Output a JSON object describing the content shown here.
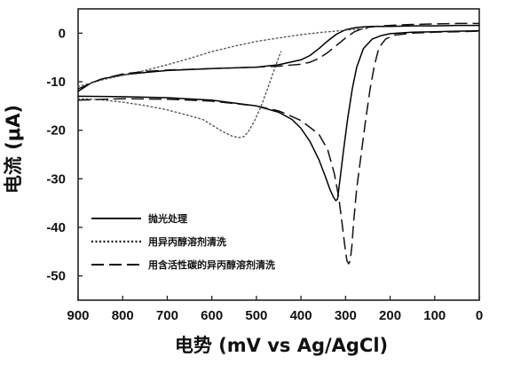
{
  "chart_data": {
    "type": "line",
    "xlabel": "电势  (mV vs Ag/AgCl)",
    "ylabel": "电流  (μA)",
    "xlim": [
      900,
      0
    ],
    "ylim": [
      -55,
      5
    ],
    "x_ticks": [
      900,
      800,
      700,
      600,
      500,
      400,
      300,
      200,
      100,
      0
    ],
    "y_ticks": [
      0,
      -10,
      -20,
      -30,
      -40,
      -50
    ],
    "legend_position": "lower-left",
    "grid": false,
    "series": [
      {
        "name": "抛光处理",
        "style": "solid",
        "color": "#000000",
        "segments": [
          {
            "x": [
              900,
              870,
              840,
              800,
              750,
              700,
              600,
              500,
              450,
              400,
              380,
              360,
              340,
              320,
              300,
              280,
              260,
              240,
              220,
              200,
              150,
              100,
              50,
              0
            ],
            "y": [
              -12,
              -10.2,
              -9.3,
              -8.6,
              -8.1,
              -7.7,
              -7.3,
              -7,
              -6.5,
              -5.5,
              -4.6,
              -3.2,
              -1.6,
              -0.2,
              0.7,
              1.1,
              1.3,
              1.4,
              1.4,
              1.4,
              1.5,
              1.5,
              1.6,
              1.6
            ]
          },
          {
            "x": [
              900,
              800,
              700,
              600,
              500,
              450,
              420,
              400,
              380,
              360,
              345,
              335,
              327,
              322,
              318,
              312,
              305,
              295,
              285,
              275,
              260,
              240,
              220,
              200,
              150,
              100,
              50,
              0
            ],
            "y": [
              -13,
              -13.1,
              -13.3,
              -13.8,
              -15,
              -16.3,
              -17.8,
              -19.6,
              -22.3,
              -26,
              -29.6,
              -32.2,
              -33.8,
              -34.5,
              -34.2,
              -29.8,
              -24.5,
              -17.5,
              -11.5,
              -7,
              -3.2,
              -1.2,
              -0.5,
              -0.1,
              0.2,
              0.3,
              0.4,
              0.5
            ]
          }
        ]
      },
      {
        "name": "用异丙醇溶剂清洗",
        "style": "dotted",
        "color": "#555555",
        "segments": [
          {
            "x": [
              900,
              850,
              800,
              750,
              700,
              650,
              600,
              550,
              500,
              450,
              400,
              350,
              300,
              280,
              260,
              250
            ],
            "y": [
              -11,
              -9.7,
              -8.7,
              -7.7,
              -6.5,
              -5.2,
              -3.8,
              -2.7,
              -1.7,
              -1,
              -0.3,
              0.2,
              0.6,
              0.8,
              0.9,
              1
            ]
          },
          {
            "x": [
              900,
              850,
              800,
              750,
              700,
              650,
              620,
              600,
              575,
              555,
              540,
              528,
              518,
              505,
              490,
              475,
              460,
              445
            ],
            "y": [
              -13.5,
              -13.7,
              -14.2,
              -14.9,
              -15.8,
              -17,
              -17.8,
              -18.9,
              -20.3,
              -21.2,
              -21.5,
              -21.3,
              -20.3,
              -18.2,
              -15.2,
              -11.5,
              -7.5,
              -3.8
            ]
          }
        ]
      },
      {
        "name": "用含活性碳的异丙醇溶剂清洗",
        "style": "dashed",
        "color": "#111111",
        "segments": [
          {
            "x": [
              900,
              850,
              800,
              750,
              700,
              600,
              500,
              450,
              400,
              380,
              360,
              340,
              320,
              300,
              280,
              260,
              250,
              240,
              220,
              200,
              150,
              100,
              50,
              0
            ],
            "y": [
              -11.5,
              -9.5,
              -8.4,
              -7.9,
              -7.6,
              -7.3,
              -7,
              -6.8,
              -6.4,
              -6,
              -5.2,
              -4,
              -2.5,
              -1,
              0.3,
              1,
              1.2,
              1.3,
              1.5,
              1.6,
              1.8,
              1.9,
              2,
              2
            ]
          },
          {
            "x": [
              900,
              800,
              700,
              600,
              500,
              450,
              400,
              360,
              340,
              325,
              315,
              308,
              302,
              297,
              293,
              290,
              286,
              282,
              275,
              265,
              255,
              245,
              235,
              225,
              210,
              190,
              150,
              100,
              50,
              0
            ],
            "y": [
              -13.8,
              -13.5,
              -13.6,
              -14,
              -15,
              -16,
              -18,
              -20.8,
              -24,
              -29,
              -34,
              -39,
              -43.5,
              -46.8,
              -47.5,
              -47,
              -44,
              -39,
              -32,
              -25,
              -18,
              -11.5,
              -6.5,
              -3,
              -1.2,
              -0.4,
              0,
              0.2,
              0.3,
              0.4
            ]
          }
        ]
      }
    ]
  }
}
